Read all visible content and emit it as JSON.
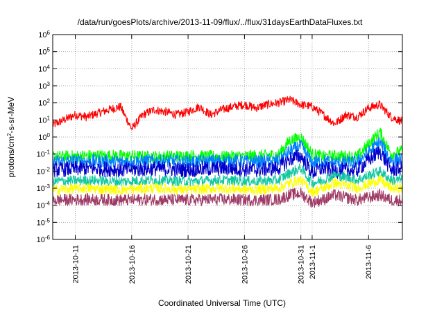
{
  "chart_data": {
    "type": "line",
    "title": "/data/run/goesPlots/archive/2013-11-09/flux/../flux/31daysEarthDataFluxes.txt",
    "xlabel": "Coordinated Universal Time (UTC)",
    "ylabel": {
      "base": "protons/cm",
      "sup": "2",
      "rest": "-s-sr-MeV"
    },
    "yscale": "log",
    "ylim_exp": [
      -6,
      6
    ],
    "y_ticks": [
      {
        "exp": -6
      },
      {
        "exp": -5
      },
      {
        "exp": -4
      },
      {
        "exp": -3
      },
      {
        "exp": -2
      },
      {
        "exp": -1
      },
      {
        "exp": 0
      },
      {
        "exp": 1
      },
      {
        "exp": 2
      },
      {
        "exp": 3
      },
      {
        "exp": 4
      },
      {
        "exp": 5
      },
      {
        "exp": 6
      }
    ],
    "x_start": "2013-10-09",
    "x_end": "2013-11-09",
    "x_ticks": [
      {
        "date": "2013-10-11",
        "label": "2013-10-11"
      },
      {
        "date": "2013-10-16",
        "label": "2013-10-16"
      },
      {
        "date": "2013-10-21",
        "label": "2013-10-21"
      },
      {
        "date": "2013-10-26",
        "label": "2013-10-26"
      },
      {
        "date": "2013-10-31",
        "label": "2013-10-31"
      },
      {
        "date": "2013-11-01",
        "label": "2013-11-1"
      },
      {
        "date": "2013-11-06",
        "label": "2013-11-6"
      }
    ],
    "grid": true,
    "series": [
      {
        "color": "#ff0000",
        "x": [
          "2013-10-09",
          "2013-10-10",
          "2013-10-11",
          "2013-10-12",
          "2013-10-13",
          "2013-10-14",
          "2013-10-15",
          "2013-10-16",
          "2013-10-17",
          "2013-10-18",
          "2013-10-19",
          "2013-10-20",
          "2013-10-21",
          "2013-10-22",
          "2013-10-23",
          "2013-10-24",
          "2013-10-25",
          "2013-10-26",
          "2013-10-27",
          "2013-10-28",
          "2013-10-29",
          "2013-10-30",
          "2013-10-31",
          "2013-11-01",
          "2013-11-02",
          "2013-11-03",
          "2013-11-04",
          "2013-11-05",
          "2013-11-06",
          "2013-11-07",
          "2013-11-08",
          "2013-11-09"
        ],
        "y": [
          5,
          10,
          20,
          15,
          25,
          40,
          60,
          3,
          20,
          40,
          30,
          20,
          30,
          60,
          20,
          40,
          60,
          80,
          50,
          80,
          100,
          150,
          80,
          60,
          20,
          6,
          20,
          15,
          50,
          80,
          15,
          8
        ]
      },
      {
        "color": "#00ff00",
        "x": [
          "2013-10-09",
          "2013-10-12",
          "2013-10-15",
          "2013-10-18",
          "2013-10-21",
          "2013-10-24",
          "2013-10-27",
          "2013-10-29",
          "2013-10-30",
          "2013-10-31",
          "2013-11-01",
          "2013-11-02",
          "2013-11-03",
          "2013-11-05",
          "2013-11-07",
          "2013-11-08",
          "2013-11-09"
        ],
        "y": [
          0.07,
          0.08,
          0.08,
          0.07,
          0.08,
          0.07,
          0.08,
          0.09,
          0.6,
          1.0,
          0.1,
          0.07,
          0.08,
          0.07,
          2.0,
          0.1,
          0.15
        ]
      },
      {
        "color": "#0080ff",
        "x": [
          "2013-10-09",
          "2013-10-12",
          "2013-10-15",
          "2013-10-18",
          "2013-10-21",
          "2013-10-24",
          "2013-10-27",
          "2013-10-29",
          "2013-10-30",
          "2013-10-31",
          "2013-11-01",
          "2013-11-02",
          "2013-11-03",
          "2013-11-05",
          "2013-11-07",
          "2013-11-08",
          "2013-11-09"
        ],
        "y": [
          0.035,
          0.04,
          0.035,
          0.04,
          0.035,
          0.04,
          0.035,
          0.04,
          0.15,
          0.3,
          0.03,
          0.04,
          0.03,
          0.035,
          0.5,
          0.04,
          0.05
        ]
      },
      {
        "color": "#0000cc",
        "x": [
          "2013-10-09",
          "2013-10-12",
          "2013-10-15",
          "2013-10-18",
          "2013-10-21",
          "2013-10-24",
          "2013-10-27",
          "2013-10-29",
          "2013-10-30",
          "2013-10-31",
          "2013-11-01",
          "2013-11-02",
          "2013-11-03",
          "2013-11-05",
          "2013-11-07",
          "2013-11-08",
          "2013-11-09"
        ],
        "y": [
          0.012,
          0.015,
          0.012,
          0.014,
          0.012,
          0.015,
          0.012,
          0.015,
          0.05,
          0.08,
          0.008,
          0.015,
          0.01,
          0.012,
          0.15,
          0.012,
          0.015
        ]
      },
      {
        "color": "#10c8a0",
        "x": [
          "2013-10-09",
          "2013-10-12",
          "2013-10-15",
          "2013-10-18",
          "2013-10-21",
          "2013-10-24",
          "2013-10-27",
          "2013-10-29",
          "2013-10-30",
          "2013-10-31",
          "2013-11-01",
          "2013-11-02",
          "2013-11-03",
          "2013-11-05",
          "2013-11-07",
          "2013-11-08",
          "2013-11-09"
        ],
        "y": [
          0.0025,
          0.003,
          0.0025,
          0.003,
          0.0025,
          0.003,
          0.0025,
          0.003,
          0.008,
          0.015,
          0.002,
          0.003,
          0.006,
          0.003,
          0.01,
          0.003,
          0.003
        ]
      },
      {
        "color": "#ffff00",
        "x": [
          "2013-10-09",
          "2013-10-12",
          "2013-10-15",
          "2013-10-18",
          "2013-10-21",
          "2013-10-24",
          "2013-10-27",
          "2013-10-29",
          "2013-10-30",
          "2013-10-31",
          "2013-11-01",
          "2013-11-02",
          "2013-11-03",
          "2013-11-05",
          "2013-11-07",
          "2013-11-08",
          "2013-11-09"
        ],
        "y": [
          0.0008,
          0.001,
          0.0008,
          0.001,
          0.0008,
          0.001,
          0.0008,
          0.001,
          0.002,
          0.003,
          0.0006,
          0.001,
          0.002,
          0.001,
          0.003,
          0.001,
          0.001
        ]
      },
      {
        "color": "#9e3a64",
        "x": [
          "2013-10-09",
          "2013-10-12",
          "2013-10-15",
          "2013-10-18",
          "2013-10-21",
          "2013-10-24",
          "2013-10-27",
          "2013-10-29",
          "2013-10-30",
          "2013-10-31",
          "2013-11-01",
          "2013-11-02",
          "2013-11-03",
          "2013-11-05",
          "2013-11-07",
          "2013-11-08",
          "2013-11-09"
        ],
        "y": [
          0.0002,
          0.00022,
          0.0002,
          0.00022,
          0.0002,
          0.00022,
          0.0002,
          0.00022,
          0.0004,
          0.0005,
          0.00015,
          0.00022,
          0.0004,
          0.0002,
          0.0004,
          0.0002,
          0.0002
        ]
      }
    ]
  }
}
